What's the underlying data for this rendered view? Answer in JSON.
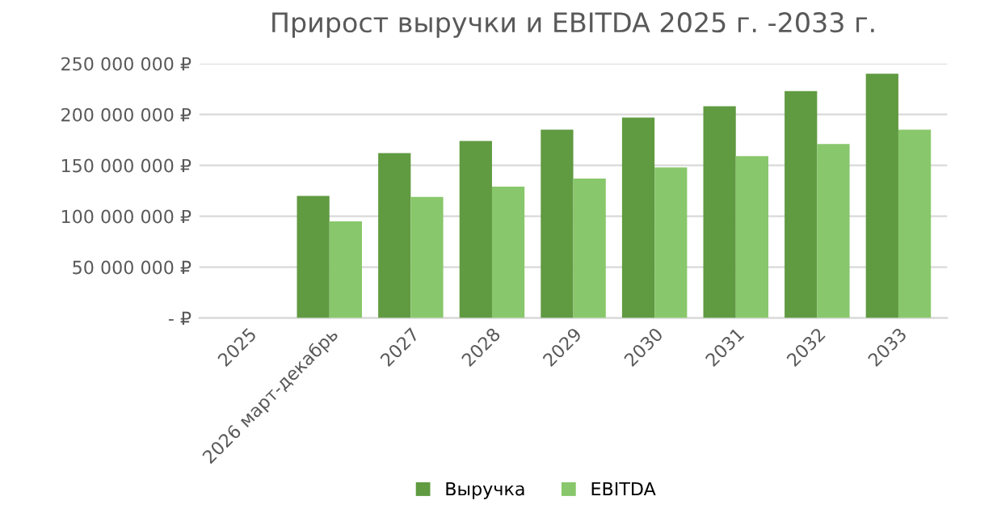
{
  "chart_data": {
    "type": "bar",
    "title": "Прирост выручки и EBITDA 2025 г. -2033 г.",
    "categories": [
      "2025",
      "2026 март-декабрь",
      "2027",
      "2028",
      "2029",
      "2030",
      "2031",
      "2032",
      "2033"
    ],
    "series": [
      {
        "name": "Выручка",
        "color": "#609a41",
        "values": [
          0,
          120000000,
          162000000,
          174000000,
          185000000,
          197000000,
          208000000,
          223000000,
          240000000
        ]
      },
      {
        "name": "EBITDA",
        "color": "#88c76b",
        "values": [
          0,
          95000000,
          119000000,
          129000000,
          137000000,
          148000000,
          159000000,
          171000000,
          185000000
        ]
      }
    ],
    "ylim": [
      0,
      250000000
    ],
    "yticks": [
      {
        "value": 0,
        "label": "- ₽"
      },
      {
        "value": 50000000,
        "label": "50 000 000 ₽"
      },
      {
        "value": 100000000,
        "label": "100 000 000 ₽"
      },
      {
        "value": 150000000,
        "label": "150 000 000 ₽"
      },
      {
        "value": 200000000,
        "label": "200 000 000 ₽"
      },
      {
        "value": 250000000,
        "label": "250 000 000 ₽"
      }
    ],
    "grid": "y",
    "legend": "bottom"
  }
}
